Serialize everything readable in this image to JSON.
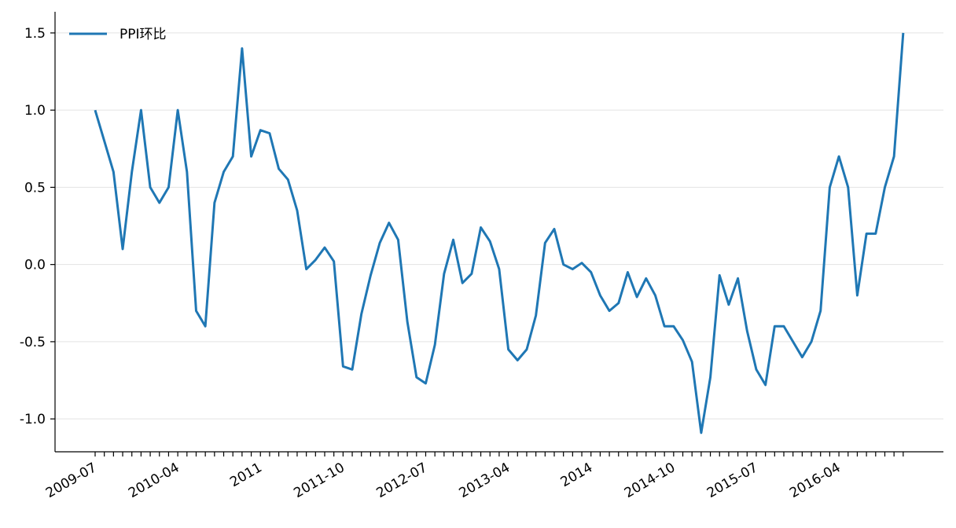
{
  "chart_data": {
    "type": "line",
    "categories": [
      "2009-07",
      null,
      null,
      null,
      null,
      null,
      null,
      null,
      null,
      "2010-04",
      null,
      null,
      null,
      null,
      null,
      null,
      null,
      null,
      "2011",
      null,
      null,
      null,
      null,
      null,
      null,
      null,
      null,
      "2011-10",
      null,
      null,
      null,
      null,
      null,
      null,
      null,
      null,
      "2012-07",
      null,
      null,
      null,
      null,
      null,
      null,
      null,
      null,
      "2013-04",
      null,
      null,
      null,
      null,
      null,
      null,
      null,
      null,
      "2014",
      null,
      null,
      null,
      null,
      null,
      null,
      null,
      null,
      "2014-10",
      null,
      null,
      null,
      null,
      null,
      null,
      null,
      null,
      "2015-07",
      null,
      null,
      null,
      null,
      null,
      null,
      null,
      null,
      "2016-04",
      null,
      null,
      null,
      null,
      null,
      null,
      null
    ],
    "series": [
      {
        "name": "PPI环比",
        "color": "#1f77b4",
        "values": [
          1.0,
          0.8,
          0.6,
          0.1,
          0.6,
          1.0,
          0.5,
          0.4,
          0.5,
          1.0,
          0.6,
          -0.3,
          -0.4,
          0.4,
          0.6,
          0.7,
          1.4,
          0.7,
          0.87,
          0.85,
          0.62,
          0.55,
          0.35,
          -0.03,
          0.03,
          0.11,
          0.02,
          -0.66,
          -0.68,
          -0.32,
          -0.07,
          0.14,
          0.27,
          0.16,
          -0.37,
          -0.73,
          -0.77,
          -0.52,
          -0.06,
          0.16,
          -0.12,
          -0.06,
          0.24,
          0.15,
          -0.03,
          -0.55,
          -0.62,
          -0.55,
          -0.33,
          0.14,
          0.23,
          0.0,
          -0.03,
          0.01,
          -0.05,
          -0.2,
          -0.3,
          -0.25,
          -0.05,
          -0.21,
          -0.09,
          -0.2,
          -0.4,
          -0.4,
          -0.49,
          -0.63,
          -1.09,
          -0.73,
          -0.07,
          -0.26,
          -0.09,
          -0.43,
          -0.68,
          -0.78,
          -0.4,
          -0.4,
          -0.5,
          -0.6,
          -0.5,
          -0.3,
          0.5,
          0.7,
          0.5,
          -0.2,
          0.2,
          0.2,
          0.5,
          0.7,
          1.5
        ]
      }
    ],
    "ylim": [
      -1.213,
      1.637
    ],
    "yticks": [
      {
        "value": -1.0,
        "label": "-1.0"
      },
      -0.5,
      {
        "value": 0.0,
        "label": "0.0"
      },
      0.5,
      {
        "value": 1.0,
        "label": "1.0"
      },
      1.5
    ],
    "grid": true,
    "legend": "upper left"
  }
}
